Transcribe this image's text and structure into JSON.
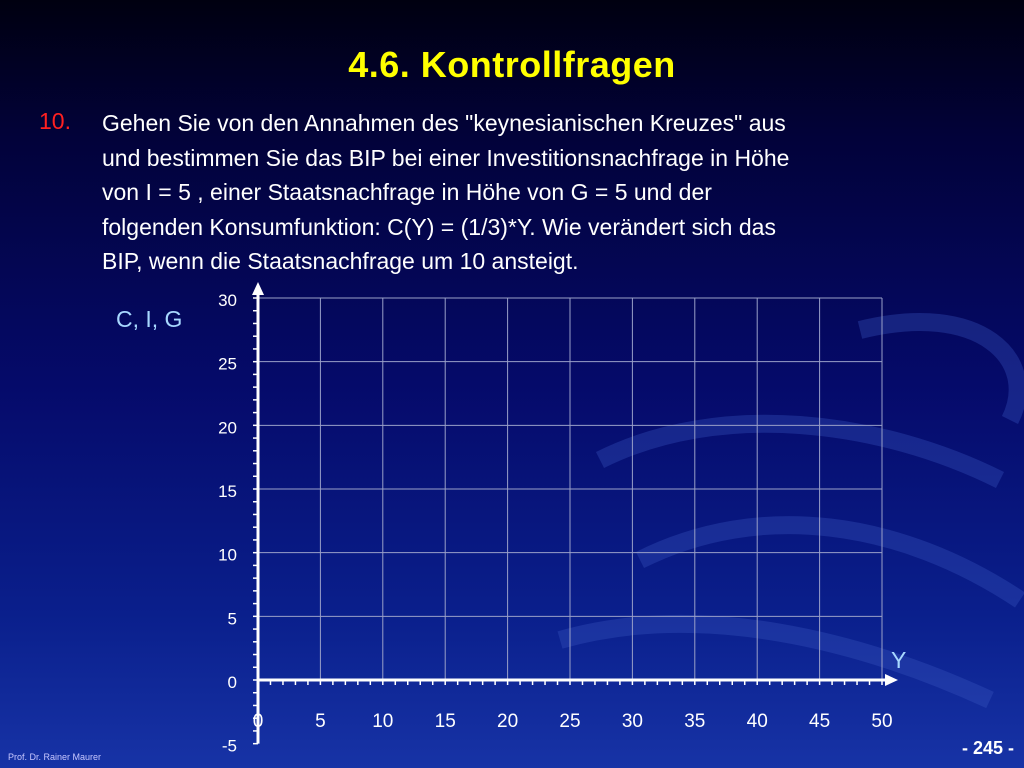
{
  "slide": {
    "title": "4.6. Kontrollfragen",
    "question_number": "10.",
    "question_lines": [
      "Gehen Sie von den Annahmen des \"keynesianischen Kreuzes\" aus",
      "und bestimmen Sie das BIP bei einer Investitionsnachfrage in Höhe",
      "von I = 5 , einer Staatsnachfrage in Höhe von G = 5  und der",
      "folgenden Konsumfunktion: C(Y) = (1/3)*Y. Wie verändert sich das",
      "BIP, wenn die Staatsnachfrage um 10  ansteigt."
    ],
    "author": "Prof. Dr. Rainer Maurer",
    "page_number": "- 245 -"
  },
  "colors": {
    "title": "#ffff00",
    "question_number": "#ff2020",
    "text": "#ffffff",
    "axis_label": "#a8d8ff",
    "grid": "#9aa0c8",
    "axis": "#ffffff"
  },
  "chart_data": {
    "type": "line",
    "title": "",
    "xlabel": "Y",
    "ylabel": "C, I, G",
    "x_ticks": [
      0,
      5,
      10,
      15,
      20,
      25,
      30,
      35,
      40,
      45,
      50
    ],
    "y_ticks": [
      -5,
      0,
      5,
      10,
      15,
      20,
      25,
      30
    ],
    "xlim": [
      0,
      50
    ],
    "ylim": [
      -5,
      30
    ],
    "grid_xlim": [
      0,
      50
    ],
    "grid_ylim": [
      0,
      30
    ],
    "grid": true,
    "series": []
  }
}
